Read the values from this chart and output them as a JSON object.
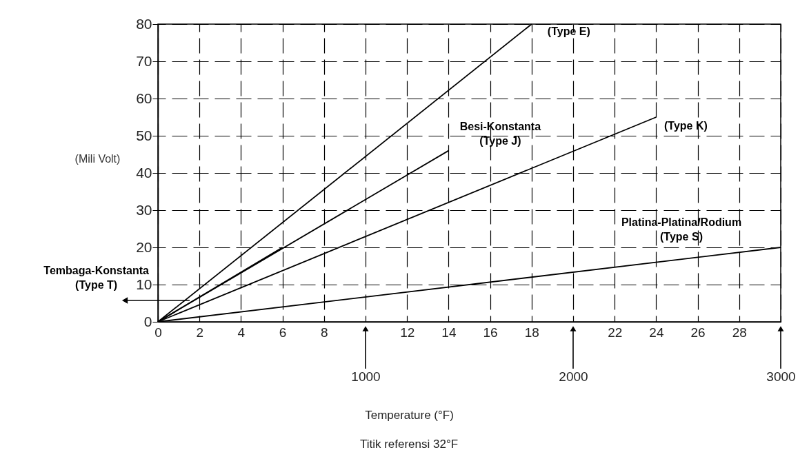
{
  "chart_data": {
    "type": "line",
    "x2label": "Temperature (°F)",
    "ylabel": "(Mili Volt)",
    "x2lim": [
      0,
      3000
    ],
    "x2ticks": [
      1000,
      2000,
      3000
    ],
    "xlim": [
      0,
      30
    ],
    "ylim": [
      0,
      80
    ],
    "xticks": [
      0,
      2,
      4,
      6,
      8,
      {
        "value": 10,
        "label": null
      },
      12,
      14,
      16,
      18,
      {
        "value": 20,
        "label": null
      },
      22,
      24,
      26,
      28,
      {
        "value": 30,
        "label": null
      }
    ],
    "yticks": [
      0,
      10,
      20,
      30,
      40,
      50,
      60,
      70,
      80
    ],
    "grid": true,
    "legend": false,
    "line_style": "solid",
    "marker": "none",
    "series": [
      {
        "name": "(Type E)",
        "color": "#000000",
        "x": [
          0,
          18
        ],
        "values": [
          0,
          80
        ]
      },
      {
        "name": "Besi-Konstanta (Type J)",
        "color": "#000000",
        "x": [
          0,
          14
        ],
        "values": [
          0,
          46
        ]
      },
      {
        "name": "(Type K)",
        "color": "#000000",
        "x": [
          0,
          24
        ],
        "values": [
          0,
          55
        ]
      },
      {
        "name": "Platina-Platina/Rodium (Type S)",
        "color": "#000000",
        "x": [
          0,
          30
        ],
        "values": [
          0,
          20
        ]
      },
      {
        "name": "Tembaga-Konstanta (Type T)",
        "color": "#000000",
        "x": [
          0,
          6
        ],
        "values": [
          0,
          20
        ]
      }
    ],
    "annotations": [
      "Titik referensi 32°F"
    ]
  }
}
